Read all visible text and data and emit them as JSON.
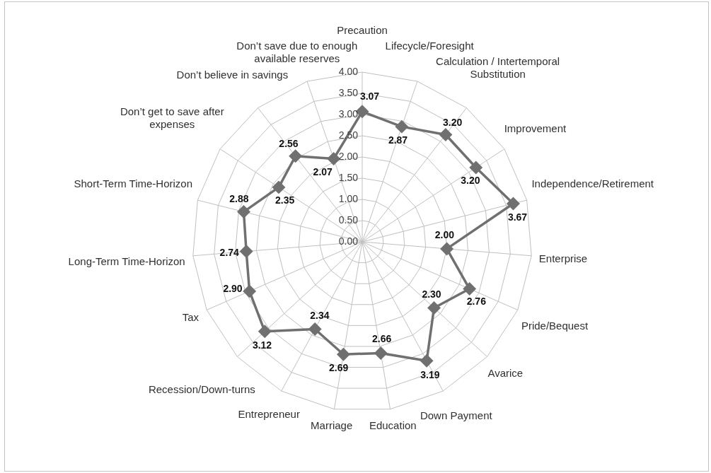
{
  "chart_data": {
    "type": "radar",
    "categories": [
      "Precaution",
      "Lifecycle/Foresight",
      "Calculation / Intertemporal Substitution",
      "Improvement",
      "Independence/Retirement",
      "Enterprise",
      "Pride/Bequest",
      "Avarice",
      "Down Payment",
      "Education",
      "Marriage",
      "Entrepreneur",
      "Recession/Down-turns",
      "Tax",
      "Long-Term Time-Horizon",
      "Short-Term Time-Horizon",
      "Don’t get to save after expenses",
      "Don’t believe in savings",
      "Don’t save due to enough available reserves"
    ],
    "series": [
      {
        "color": "#707070",
        "values": [
          3.07,
          2.87,
          3.2,
          3.2,
          3.67,
          2.0,
          2.76,
          2.3,
          3.19,
          2.66,
          2.69,
          2.34,
          3.12,
          2.9,
          2.74,
          2.88,
          2.35,
          2.56,
          2.07
        ],
        "value_labels": [
          "3.07",
          "2.87",
          "3.20",
          "3.20",
          "3.67",
          "2.00",
          "2.76",
          "2.30",
          "3.19",
          "2.66",
          "2.69",
          "2.34",
          "3.12",
          "2.90",
          "2.74",
          "2.88",
          "2.35",
          "2.56",
          "2.07"
        ]
      }
    ],
    "ylim": [
      0,
      4
    ],
    "yticks": [
      {
        "value": 0,
        "label": "0.00"
      },
      {
        "value": 0.5,
        "label": "0.50"
      },
      {
        "value": 1,
        "label": "1.00"
      },
      {
        "value": 1.5,
        "label": "1.50"
      },
      {
        "value": 2,
        "label": "2.00"
      },
      {
        "value": 2.5,
        "label": "2.50"
      },
      {
        "value": 3,
        "label": "3.00"
      },
      {
        "value": 3.5,
        "label": "3.50"
      },
      {
        "value": 4,
        "label": "4.00"
      }
    ],
    "grid": true,
    "marker": "diamond",
    "line_style": "solid"
  }
}
